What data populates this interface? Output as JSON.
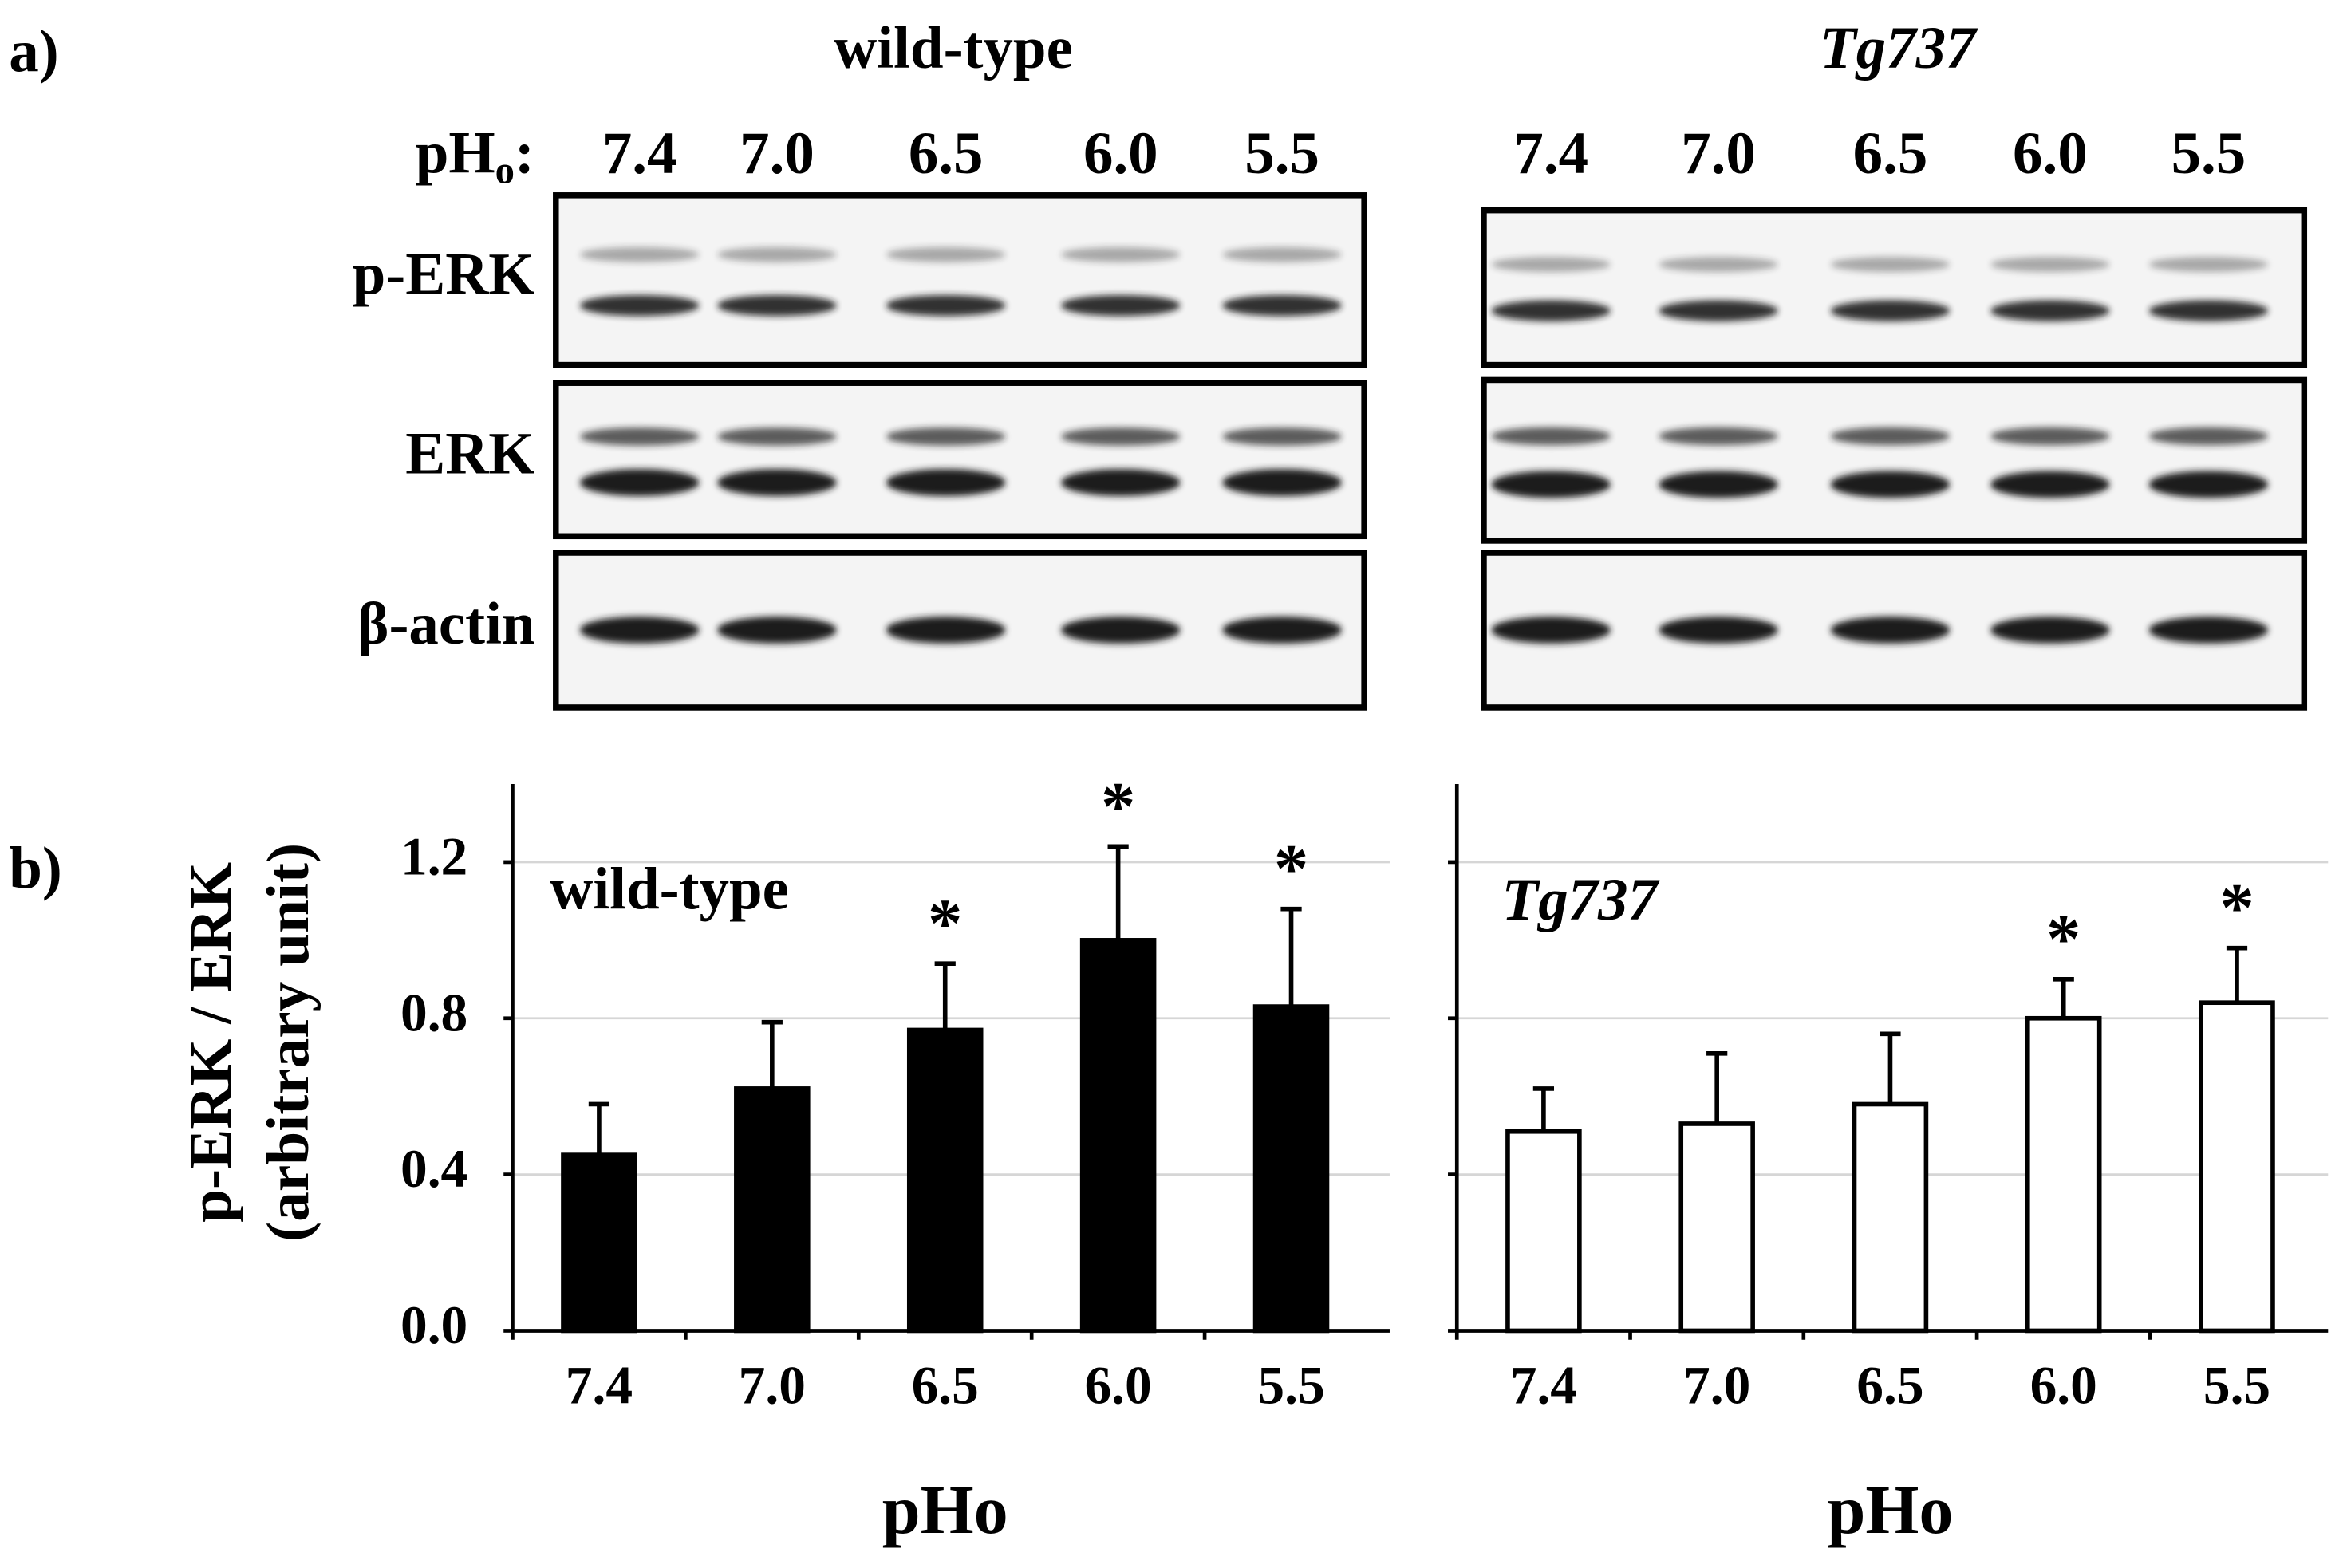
{
  "blot": {
    "panel_label": "a)",
    "ph_prefix": "pH",
    "ph_sub": "o",
    "ph_colon": ":",
    "rows": [
      "p-ERK",
      "ERK",
      "β-actin"
    ],
    "groups": [
      {
        "title": "wild-type",
        "italic": false,
        "lanes": [
          "7.4",
          "7.0",
          "6.5",
          "6.0",
          "5.5"
        ]
      },
      {
        "title": "Tg737",
        "italic": true,
        "lanes": [
          "7.4",
          "7.0",
          "6.5",
          "6.0",
          "5.5"
        ]
      }
    ]
  },
  "panel_b_label": "b)",
  "chart_data": [
    {
      "type": "bar",
      "title": "wild-type",
      "title_italic": false,
      "y_label": [
        "p-ERK / ERK",
        "(arbitrary unit)"
      ],
      "x_label": "pHo",
      "categories": [
        "7.4",
        "7.0",
        "6.5",
        "6.0",
        "5.5"
      ],
      "values": [
        0.45,
        0.62,
        0.77,
        1.0,
        0.83
      ],
      "errors": [
        0.13,
        0.17,
        0.17,
        0.24,
        0.25
      ],
      "annotations": [
        null,
        null,
        "*",
        "*",
        "*"
      ],
      "color": "#000000",
      "ylim": [
        0,
        1.4
      ],
      "yticks": [
        {
          "value": 0,
          "label": "0.0"
        },
        {
          "value": 0.4,
          "label": "0.4"
        },
        {
          "value": 0.8,
          "label": "0.8"
        },
        {
          "value": 1.2,
          "label": "1.2"
        }
      ],
      "show_ytick_labels": true,
      "grid": true
    },
    {
      "type": "bar",
      "title": "Tg737",
      "title_italic": true,
      "x_label": "pHo",
      "categories": [
        "7.4",
        "7.0",
        "6.5",
        "6.0",
        "5.5"
      ],
      "values": [
        0.51,
        0.53,
        0.58,
        0.8,
        0.84
      ],
      "errors": [
        0.11,
        0.18,
        0.18,
        0.1,
        0.14
      ],
      "annotations": [
        null,
        null,
        null,
        "*",
        "*"
      ],
      "color": "#ffffff",
      "ylim": [
        0,
        1.4
      ],
      "yticks": [
        0,
        0.4,
        0.8,
        1.2
      ],
      "show_ytick_labels": false,
      "grid": true
    }
  ]
}
